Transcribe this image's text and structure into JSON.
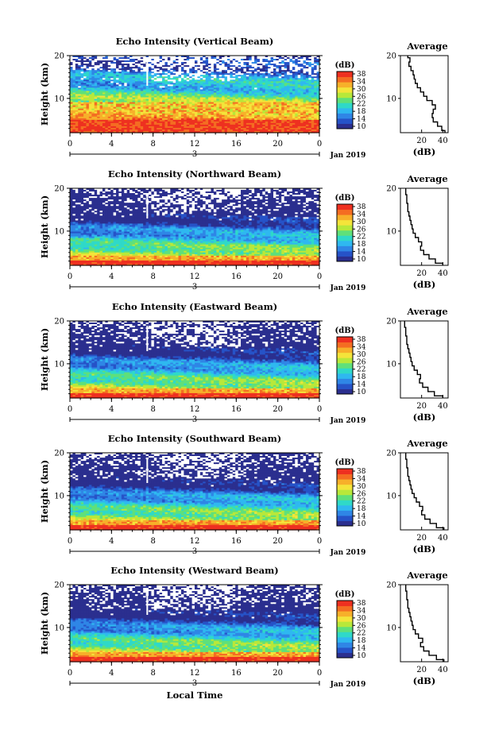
{
  "chart_data": {
    "type": "heatmap",
    "colormap": [
      "#2b2f8f",
      "#2653c8",
      "#2f86e6",
      "#2fb8f0",
      "#2fd9c8",
      "#5fe07a",
      "#b8e83a",
      "#f4e43a",
      "#f7b02a",
      "#f46d22",
      "#ee3020"
    ],
    "panels": [
      {
        "title": "Echo Intensity (Vertical Beam)",
        "ylabel": "Height (km)",
        "yticks": [
          "20",
          "10"
        ],
        "xticks": [
          "0",
          "4",
          "8",
          "12",
          "16",
          "20",
          "0"
        ],
        "date_mark": "3",
        "date_label": "Jan 2019",
        "colorbar_unit": "(dB)",
        "colorbar_ticks": [
          "38",
          "34",
          "30",
          "26",
          "22",
          "18",
          "14",
          "10"
        ],
        "profile": {
          "title": "Average",
          "xticks": [
            "20",
            "40"
          ],
          "yticks": [
            "20",
            "10"
          ],
          "xlabel": "(dB)",
          "xlim": [
            0,
            45
          ],
          "ylim": [
            2,
            20
          ],
          "points": [
            [
              42,
              2
            ],
            [
              39,
              3
            ],
            [
              35,
              4
            ],
            [
              31,
              5
            ],
            [
              30,
              6
            ],
            [
              31,
              7
            ],
            [
              33,
              8
            ],
            [
              30,
              9
            ],
            [
              25,
              10
            ],
            [
              22,
              11
            ],
            [
              19,
              12
            ],
            [
              16,
              13
            ],
            [
              14,
              14
            ],
            [
              13,
              15
            ],
            [
              12,
              16
            ],
            [
              10,
              17
            ],
            [
              8,
              18
            ],
            [
              9,
              19
            ],
            [
              7,
              20
            ]
          ]
        }
      },
      {
        "title": "Echo Intensity (Northward Beam)",
        "ylabel": "Height (km)",
        "yticks": [
          "20",
          "10"
        ],
        "xticks": [
          "0",
          "4",
          "8",
          "12",
          "16",
          "20",
          "0"
        ],
        "date_mark": "3",
        "date_label": "Jan 2019",
        "colorbar_unit": "(dB)",
        "colorbar_ticks": [
          "38",
          "34",
          "30",
          "26",
          "22",
          "18",
          "14",
          "10"
        ],
        "profile": {
          "title": "Average",
          "xticks": [
            "20",
            "40"
          ],
          "yticks": [
            "20",
            "10"
          ],
          "xlabel": "(dB)",
          "xlim": [
            0,
            45
          ],
          "ylim": [
            2,
            20
          ],
          "points": [
            [
              40,
              2
            ],
            [
              33,
              3
            ],
            [
              27,
              4
            ],
            [
              22,
              5
            ],
            [
              19,
              6
            ],
            [
              20,
              7
            ],
            [
              17,
              8
            ],
            [
              14,
              9
            ],
            [
              12,
              10
            ],
            [
              11,
              11
            ],
            [
              10,
              12
            ],
            [
              9,
              13
            ],
            [
              8,
              14
            ],
            [
              7,
              15
            ],
            [
              7,
              16
            ],
            [
              6,
              17
            ],
            [
              6,
              18
            ],
            [
              5,
              19
            ],
            [
              5,
              20
            ]
          ]
        }
      },
      {
        "title": "Echo Intensity (Eastward Beam)",
        "ylabel": "Height (km)",
        "yticks": [
          "20",
          "10"
        ],
        "xticks": [
          "0",
          "4",
          "8",
          "12",
          "16",
          "20",
          "0"
        ],
        "date_mark": "3",
        "date_label": "Jan 2019",
        "colorbar_unit": "(dB)",
        "colorbar_ticks": [
          "38",
          "34",
          "30",
          "26",
          "22",
          "18",
          "14",
          "10"
        ],
        "profile": {
          "title": "Average",
          "xticks": [
            "20",
            "40"
          ],
          "yticks": [
            "20",
            "10"
          ],
          "xlabel": "(dB)",
          "xlim": [
            0,
            45
          ],
          "ylim": [
            2,
            20
          ],
          "points": [
            [
              40,
              2
            ],
            [
              32,
              3
            ],
            [
              26,
              4
            ],
            [
              21,
              5
            ],
            [
              18,
              6
            ],
            [
              19,
              7
            ],
            [
              16,
              8
            ],
            [
              13,
              9
            ],
            [
              11,
              10
            ],
            [
              10,
              11
            ],
            [
              9,
              12
            ],
            [
              8,
              13
            ],
            [
              7,
              14
            ],
            [
              6,
              15
            ],
            [
              6,
              16
            ],
            [
              5,
              17
            ],
            [
              5,
              18
            ],
            [
              4,
              19
            ],
            [
              4,
              20
            ]
          ]
        }
      },
      {
        "title": "Echo Intensity (Southward Beam)",
        "ylabel": "Height (km)",
        "yticks": [
          "20",
          "10"
        ],
        "xticks": [
          "0",
          "4",
          "8",
          "12",
          "16",
          "20",
          "0"
        ],
        "date_mark": "3",
        "date_label": "Jan 2019",
        "colorbar_unit": "(dB)",
        "colorbar_ticks": [
          "38",
          "34",
          "30",
          "26",
          "22",
          "18",
          "14",
          "10"
        ],
        "profile": {
          "title": "Average",
          "xticks": [
            "20",
            "40"
          ],
          "yticks": [
            "20",
            "10"
          ],
          "xlabel": "(dB)",
          "xlim": [
            0,
            45
          ],
          "ylim": [
            2,
            20
          ],
          "points": [
            [
              41,
              2
            ],
            [
              34,
              3
            ],
            [
              28,
              4
            ],
            [
              23,
              5
            ],
            [
              20,
              6
            ],
            [
              21,
              7
            ],
            [
              18,
              8
            ],
            [
              15,
              9
            ],
            [
              13,
              10
            ],
            [
              11,
              11
            ],
            [
              10,
              12
            ],
            [
              9,
              13
            ],
            [
              8,
              14
            ],
            [
              7,
              15
            ],
            [
              7,
              16
            ],
            [
              6,
              17
            ],
            [
              6,
              18
            ],
            [
              5,
              19
            ],
            [
              5,
              20
            ]
          ]
        }
      },
      {
        "title": "Echo Intensity (Westward Beam)",
        "ylabel": "Height (km)",
        "yticks": [
          "20",
          "10"
        ],
        "xticks": [
          "0",
          "4",
          "8",
          "12",
          "16",
          "20",
          "0"
        ],
        "date_mark": "3",
        "date_label": "Jan 2019",
        "colorbar_unit": "(dB)",
        "colorbar_ticks": [
          "38",
          "34",
          "30",
          "26",
          "22",
          "18",
          "14",
          "10"
        ],
        "profile": {
          "title": "Average",
          "xticks": [
            "20",
            "40"
          ],
          "yticks": [
            "20",
            "10"
          ],
          "xlabel": "(dB)",
          "xlim": [
            0,
            45
          ],
          "ylim": [
            2,
            20
          ],
          "points": [
            [
              41,
              2
            ],
            [
              34,
              3
            ],
            [
              27,
              4
            ],
            [
              22,
              5
            ],
            [
              19,
              6
            ],
            [
              21,
              7
            ],
            [
              17,
              8
            ],
            [
              14,
              9
            ],
            [
              12,
              10
            ],
            [
              11,
              11
            ],
            [
              10,
              12
            ],
            [
              9,
              13
            ],
            [
              8,
              14
            ],
            [
              7,
              15
            ],
            [
              7,
              16
            ],
            [
              6,
              17
            ],
            [
              6,
              18
            ],
            [
              5,
              19
            ],
            [
              5,
              20
            ]
          ]
        }
      }
    ],
    "xlabel": "Local Time"
  }
}
